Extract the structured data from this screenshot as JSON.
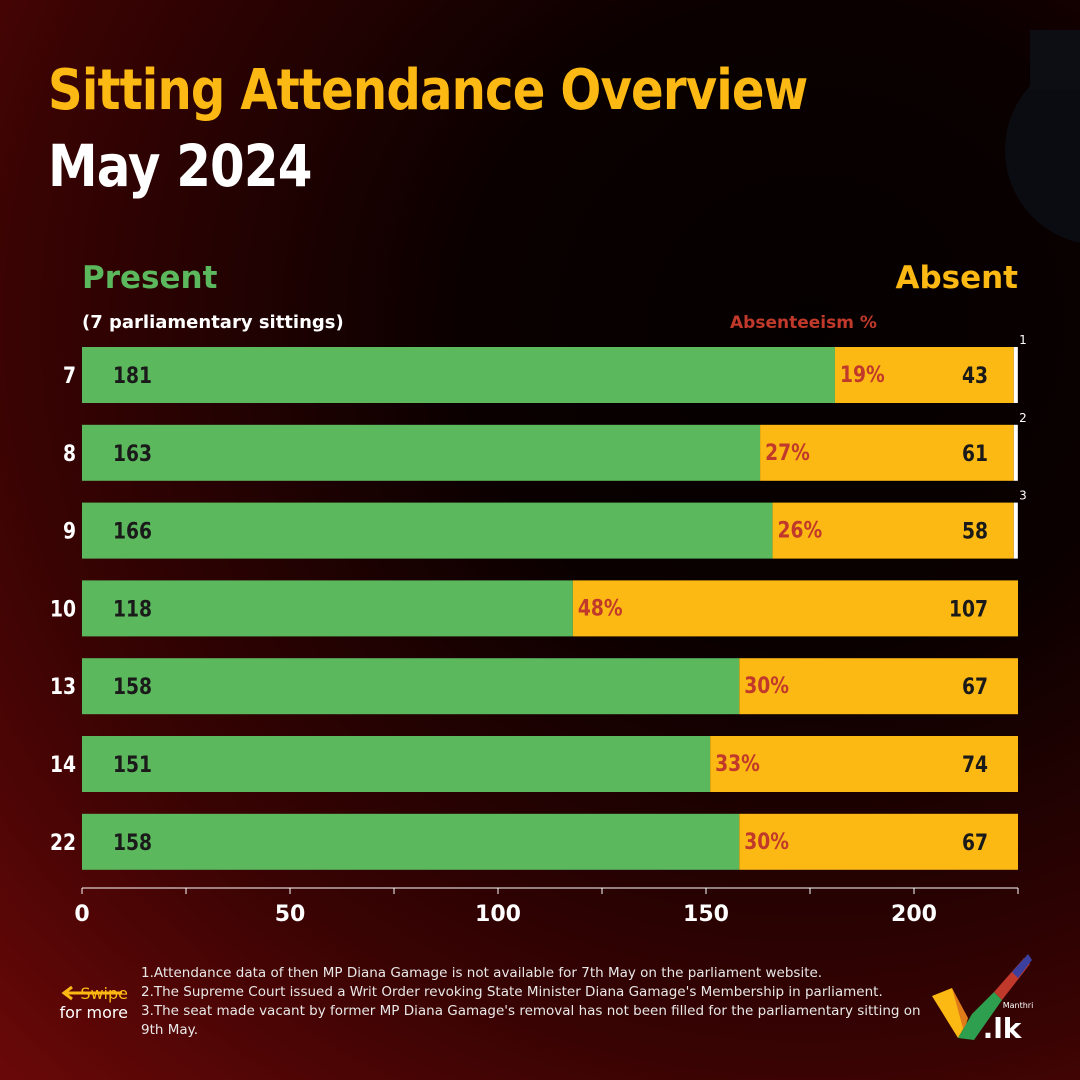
{
  "title": "Sitting Attendance Overview",
  "subtitle": "May 2024",
  "legend": {
    "present": "Present",
    "absent": "Absent",
    "sittings_note": "(7 parliamentary sittings)",
    "absenteeism": "Absenteeism %"
  },
  "colors": {
    "title": "#FDB913",
    "present": "#5CB85C",
    "absent": "#FDB913",
    "absenteeism_text": "#C0392B",
    "na": "#FFFFFF"
  },
  "chart_data": {
    "type": "bar",
    "orientation": "horizontal",
    "stacked": true,
    "categories": [
      "7",
      "8",
      "9",
      "10",
      "13",
      "14",
      "22"
    ],
    "series": [
      {
        "name": "Present",
        "values": [
          181,
          163,
          166,
          118,
          158,
          151,
          158
        ]
      },
      {
        "name": "Absent",
        "values": [
          43,
          61,
          58,
          107,
          67,
          74,
          67
        ]
      }
    ],
    "absenteeism_labels": [
      "19%",
      "27%",
      "26%",
      "48%",
      "30%",
      "33%",
      "30%"
    ],
    "not_available": [
      1,
      1,
      1,
      0,
      0,
      0,
      0
    ],
    "footnote_markers": [
      "1",
      "2",
      "3",
      "",
      "",
      "",
      ""
    ],
    "xlim": [
      0,
      225
    ],
    "x_ticks": [
      0,
      25,
      50,
      75,
      100,
      125,
      150,
      175,
      200,
      225
    ],
    "x_tick_labels": [
      "0",
      "",
      "50",
      "",
      "100",
      "",
      "150",
      "",
      "200",
      ""
    ]
  },
  "footnotes": [
    "1.Attendance data of then MP Diana Gamage is not available for 7th May on the parliament website.",
    "2.The Supreme Court issued a Writ Order revoking State Minister Diana Gamage's Membership in parliament.",
    "3.The seat made vacant by former MP Diana Gamage's removal has not been filled for the parliamentary sitting on 9th May."
  ],
  "swipe": {
    "line1": "Swipe",
    "line2": "for more"
  },
  "logo": {
    "small_text": "Manthri",
    "text": ".lk"
  }
}
